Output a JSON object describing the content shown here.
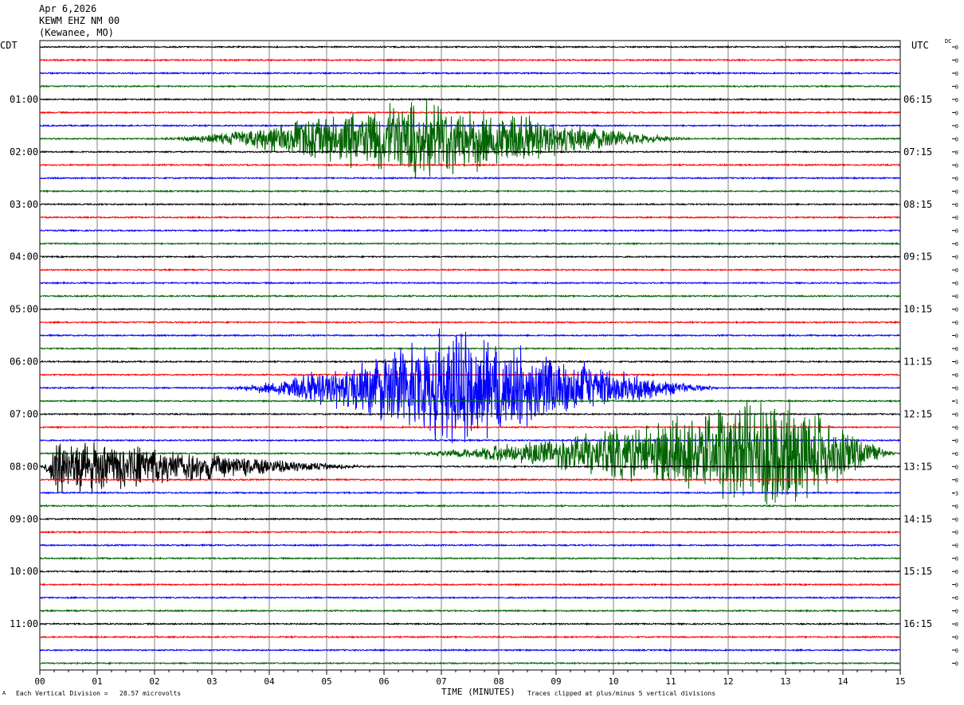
{
  "header": {
    "date": "Apr 6,2026",
    "station": "KEWM EHZ NM 00",
    "location": "(Kewanee, MO)"
  },
  "left_zone": "CDT",
  "right_zone": "UTC",
  "dc_label": "DC",
  "footer": {
    "corner_mark": "A",
    "vertical_division": "Each Vertical Division =   28.57 microvolts",
    "clip_note": "Traces clipped at plus/minus 5 vertical divisions"
  },
  "chart_data": {
    "type": "line",
    "xlabel": "TIME (MINUTES)",
    "xlim": [
      0,
      15
    ],
    "x_ticks": [
      "00",
      "01",
      "02",
      "03",
      "04",
      "05",
      "06",
      "07",
      "08",
      "09",
      "10",
      "11",
      "12",
      "13",
      "14",
      "15"
    ],
    "trace_count": 48,
    "trace_minutes": 15,
    "trace_colors": [
      "#000000",
      "#ff0000",
      "#0000ff",
      "#006400"
    ],
    "left_hour_labels": [
      {
        "trace": 4,
        "label": "01:00"
      },
      {
        "trace": 8,
        "label": "02:00"
      },
      {
        "trace": 12,
        "label": "03:00"
      },
      {
        "trace": 16,
        "label": "04:00"
      },
      {
        "trace": 20,
        "label": "05:00"
      },
      {
        "trace": 24,
        "label": "06:00"
      },
      {
        "trace": 28,
        "label": "07:00"
      },
      {
        "trace": 32,
        "label": "08:00"
      },
      {
        "trace": 36,
        "label": "09:00"
      },
      {
        "trace": 40,
        "label": "10:00"
      },
      {
        "trace": 44,
        "label": "11:00"
      }
    ],
    "right_hour_labels": [
      {
        "trace": 4,
        "label": "06:15"
      },
      {
        "trace": 8,
        "label": "07:15"
      },
      {
        "trace": 12,
        "label": "08:15"
      },
      {
        "trace": 16,
        "label": "09:15"
      },
      {
        "trace": 20,
        "label": "10:15"
      },
      {
        "trace": 24,
        "label": "11:15"
      },
      {
        "trace": 28,
        "label": "12:15"
      },
      {
        "trace": 32,
        "label": "13:15"
      },
      {
        "trace": 36,
        "label": "14:15"
      },
      {
        "trace": 40,
        "label": "15:15"
      },
      {
        "trace": 44,
        "label": "16:15"
      }
    ],
    "dc_offsets": [
      "0",
      "0",
      "0",
      "0",
      "0",
      "0",
      "0",
      "0",
      "0",
      "0",
      "0",
      "0",
      "0",
      "0",
      "0",
      "0",
      "0",
      "0",
      "0",
      "0",
      "0",
      "0",
      "0",
      "0",
      "0",
      "0",
      "0",
      "-1",
      "0",
      "0",
      "0",
      "0",
      "0",
      "0",
      "-3",
      "0",
      "0",
      "0",
      "0",
      "0",
      "0",
      "0",
      "0",
      "0",
      "0",
      "0",
      "0",
      "0"
    ],
    "events": [
      {
        "trace": 7,
        "start_minute": 1.8,
        "peak_minute": 6.5,
        "end_minute": 11.5,
        "peak_amplitude_divisions": 3.5
      },
      {
        "trace": 26,
        "start_minute": 3.0,
        "peak_minute": 7.2,
        "end_minute": 12.0,
        "peak_amplitude_divisions": 5.0
      },
      {
        "trace": 31,
        "start_minute": 6.0,
        "peak_minute": 13.0,
        "end_minute": 15.0,
        "peak_amplitude_divisions": 5.0
      },
      {
        "trace": 32,
        "start_minute": 0.0,
        "peak_minute": 0.3,
        "end_minute": 6.0,
        "peak_amplitude_divisions": 2.5
      }
    ],
    "clip_divisions": 5,
    "grid": true
  }
}
